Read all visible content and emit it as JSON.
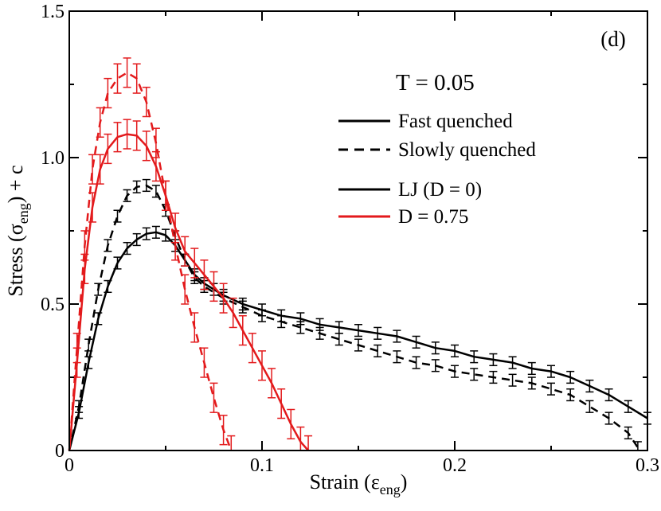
{
  "chart_data": {
    "type": "line",
    "panel_label": "(d)",
    "title": "T = 0.05",
    "xlabel": {
      "main": "Strain (",
      "symbol": "ε",
      "sub": "eng",
      "tail": ")"
    },
    "ylabel": {
      "main": "Stress (",
      "symbol": "σ",
      "sub": "eng",
      "tail": ") + c"
    },
    "xlim": [
      0,
      0.3
    ],
    "ylim": [
      0,
      1.5
    ],
    "x_ticks": [
      0,
      0.1,
      0.2,
      0.3
    ],
    "x_tick_labels": [
      "0",
      "0.1",
      "0.2",
      "0.3"
    ],
    "y_ticks": [
      0,
      0.5,
      1.0,
      1.5
    ],
    "y_tick_labels": [
      "0",
      "0.5",
      "1.0",
      "1.5"
    ],
    "legend": {
      "styles": [
        {
          "label": "Fast quenched",
          "dash": "solid"
        },
        {
          "label": "Slowly quenched",
          "dash": "dashed"
        }
      ],
      "colors": [
        {
          "label": "LJ (D = 0)",
          "color": "#000000"
        },
        {
          "label": "D = 0.75",
          "color": "#e31a1c"
        }
      ]
    },
    "series": [
      {
        "name": "LJ (D = 0), Fast quenched",
        "color": "#000000",
        "dash": "solid",
        "x": [
          0,
          0.005,
          0.01,
          0.015,
          0.02,
          0.025,
          0.03,
          0.035,
          0.04,
          0.045,
          0.05,
          0.055,
          0.06,
          0.065,
          0.07,
          0.075,
          0.08,
          0.09,
          0.1,
          0.11,
          0.12,
          0.13,
          0.14,
          0.15,
          0.16,
          0.17,
          0.18,
          0.19,
          0.2,
          0.21,
          0.22,
          0.23,
          0.24,
          0.25,
          0.26,
          0.27,
          0.28,
          0.29,
          0.3
        ],
        "y": [
          0,
          0.13,
          0.3,
          0.45,
          0.56,
          0.64,
          0.69,
          0.72,
          0.74,
          0.745,
          0.735,
          0.7,
          0.65,
          0.6,
          0.57,
          0.55,
          0.53,
          0.5,
          0.48,
          0.46,
          0.45,
          0.43,
          0.42,
          0.41,
          0.4,
          0.39,
          0.37,
          0.35,
          0.34,
          0.32,
          0.31,
          0.3,
          0.28,
          0.27,
          0.25,
          0.22,
          0.19,
          0.15,
          0.11
        ],
        "err": 0.02
      },
      {
        "name": "LJ (D = 0), Slowly quenched",
        "color": "#000000",
        "dash": "dashed",
        "x": [
          0,
          0.005,
          0.01,
          0.015,
          0.02,
          0.025,
          0.03,
          0.035,
          0.04,
          0.045,
          0.05,
          0.055,
          0.06,
          0.065,
          0.07,
          0.08,
          0.09,
          0.1,
          0.11,
          0.12,
          0.13,
          0.14,
          0.15,
          0.16,
          0.17,
          0.18,
          0.19,
          0.2,
          0.21,
          0.22,
          0.23,
          0.24,
          0.25,
          0.26,
          0.27,
          0.28,
          0.29,
          0.295
        ],
        "y": [
          0,
          0.15,
          0.36,
          0.55,
          0.7,
          0.8,
          0.87,
          0.9,
          0.905,
          0.885,
          0.82,
          0.73,
          0.65,
          0.59,
          0.56,
          0.52,
          0.49,
          0.46,
          0.44,
          0.42,
          0.4,
          0.38,
          0.36,
          0.34,
          0.32,
          0.3,
          0.29,
          0.27,
          0.26,
          0.25,
          0.24,
          0.23,
          0.21,
          0.19,
          0.15,
          0.11,
          0.06,
          0.01
        ],
        "err": 0.02
      },
      {
        "name": "D = 0.75, Fast quenched",
        "color": "#e31a1c",
        "dash": "solid",
        "x": [
          0,
          0.004,
          0.008,
          0.012,
          0.016,
          0.02,
          0.025,
          0.03,
          0.035,
          0.04,
          0.045,
          0.05,
          0.055,
          0.06,
          0.065,
          0.07,
          0.075,
          0.08,
          0.085,
          0.09,
          0.095,
          0.1,
          0.105,
          0.11,
          0.115,
          0.12,
          0.124
        ],
        "y": [
          0,
          0.3,
          0.62,
          0.83,
          0.96,
          1.03,
          1.07,
          1.08,
          1.075,
          1.04,
          0.97,
          0.87,
          0.76,
          0.68,
          0.64,
          0.6,
          0.56,
          0.52,
          0.47,
          0.41,
          0.35,
          0.29,
          0.23,
          0.16,
          0.09,
          0.03,
          0.0
        ],
        "err": 0.05
      },
      {
        "name": "D = 0.75, Slowly quenched",
        "color": "#e31a1c",
        "dash": "dashed",
        "x": [
          0,
          0.004,
          0.008,
          0.012,
          0.016,
          0.02,
          0.025,
          0.03,
          0.035,
          0.04,
          0.045,
          0.05,
          0.055,
          0.06,
          0.065,
          0.07,
          0.075,
          0.08,
          0.084
        ],
        "y": [
          0,
          0.35,
          0.7,
          0.96,
          1.12,
          1.22,
          1.27,
          1.29,
          1.27,
          1.19,
          1.05,
          0.87,
          0.7,
          0.55,
          0.42,
          0.3,
          0.18,
          0.07,
          0.0
        ],
        "err": 0.05
      }
    ]
  }
}
